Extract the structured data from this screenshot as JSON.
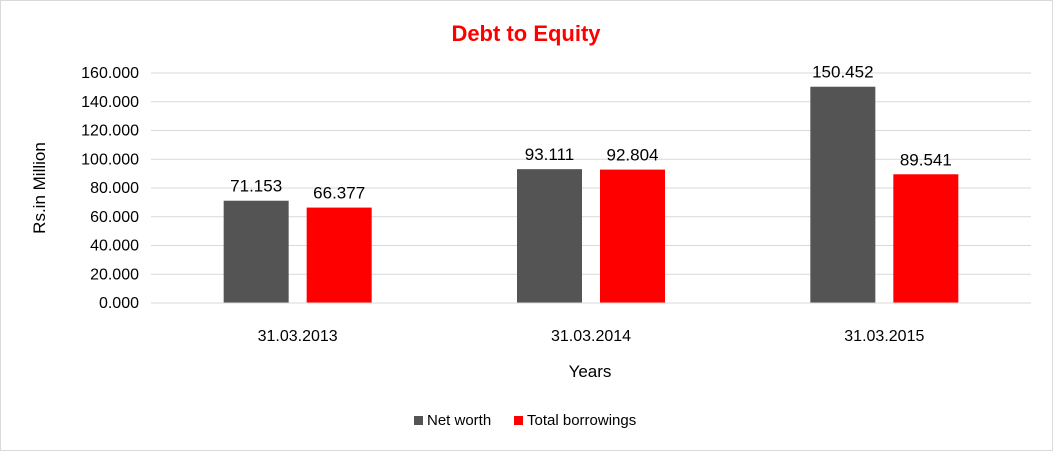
{
  "chart_data": {
    "type": "bar",
    "title": "Debt to Equity",
    "xlabel": "Years",
    "ylabel": "Rs.in Million",
    "categories": [
      "31.03.2013",
      "31.03.2014",
      "31.03.2015"
    ],
    "series": [
      {
        "name": "Net worth",
        "values": [
          71.153,
          93.111,
          150.452
        ],
        "color": "#545454"
      },
      {
        "name": "Total borrowings",
        "values": [
          66.377,
          92.804,
          89.541
        ],
        "color": "#ff0000"
      }
    ],
    "ylim": [
      0,
      160
    ],
    "yticks": [
      "0.000",
      "20.000",
      "40.000",
      "60.000",
      "80.000",
      "100.000",
      "120.000",
      "140.000",
      "160.000"
    ],
    "data_labels": [
      [
        "71.153",
        "93.111",
        "150.452"
      ],
      [
        "66.377",
        "92.804",
        "89.541"
      ]
    ],
    "grid": true,
    "legend_position": "bottom",
    "title_color": "#ff0000",
    "gridline_color": "#d9d9d9"
  }
}
